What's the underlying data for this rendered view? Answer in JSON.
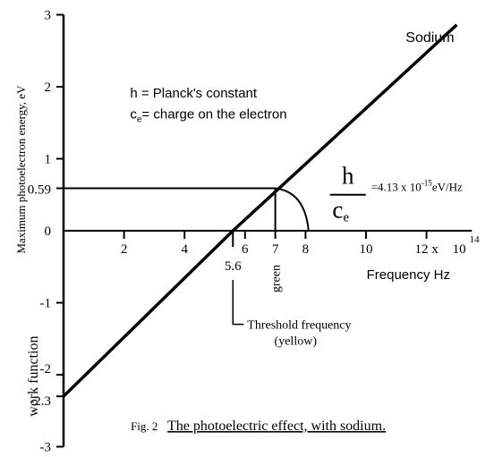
{
  "chart_data": {
    "type": "line",
    "ylabel": "Maximum photoelectron energy, eV",
    "xlabel": "Frequency Hz",
    "x_exponent": "10",
    "x_exponent_power": "14",
    "xlim": [
      0,
      13.5
    ],
    "ylim": [
      -3,
      3
    ],
    "x_ticks": [
      {
        "value": 2,
        "label": "2"
      },
      {
        "value": 4,
        "label": "4"
      },
      {
        "value": 6,
        "label": "6"
      },
      {
        "value": 7,
        "label": "7"
      },
      {
        "value": 8,
        "label": "8"
      },
      {
        "value": 10,
        "label": "10"
      },
      {
        "value": 12,
        "label": "12 x"
      }
    ],
    "y_ticks": [
      {
        "value": 3,
        "label": "3"
      },
      {
        "value": 2,
        "label": "2"
      },
      {
        "value": 1,
        "label": "1"
      },
      {
        "value": 0.59,
        "label": "0.59"
      },
      {
        "value": 0,
        "label": "0"
      },
      {
        "value": -1,
        "label": "-1"
      },
      {
        "value": -2,
        "label": "-2"
      },
      {
        "value": -2.3,
        "label": "-2.3"
      },
      {
        "value": -3,
        "label": "-3"
      }
    ],
    "series": [
      {
        "name": "Sodium",
        "x": [
          0,
          5.6,
          13
        ],
        "y": [
          -2.3,
          0,
          2.86
        ]
      }
    ],
    "annotations": {
      "legend_h": "h = Planck's constant",
      "legend_ce_prefix": "c",
      "legend_ce_sub": "e",
      "legend_ce_rest": "= charge on the electron",
      "slope_h": "h",
      "slope_c": "c",
      "slope_c_sub": "e",
      "slope_value_prefix": "=4.13 x 10",
      "slope_value_exp": "-15",
      "slope_value_suffix": "eV/Hz",
      "threshold_value": "5.6",
      "threshold_label_line1": "Threshold frequency",
      "threshold_label_line2": "(yellow)",
      "green_value": "7",
      "green_label": "green",
      "work_function": "work function",
      "caption_fig": "Fig. 2",
      "caption_text": "The photoelectric effect, with sodium."
    },
    "grid": false
  }
}
